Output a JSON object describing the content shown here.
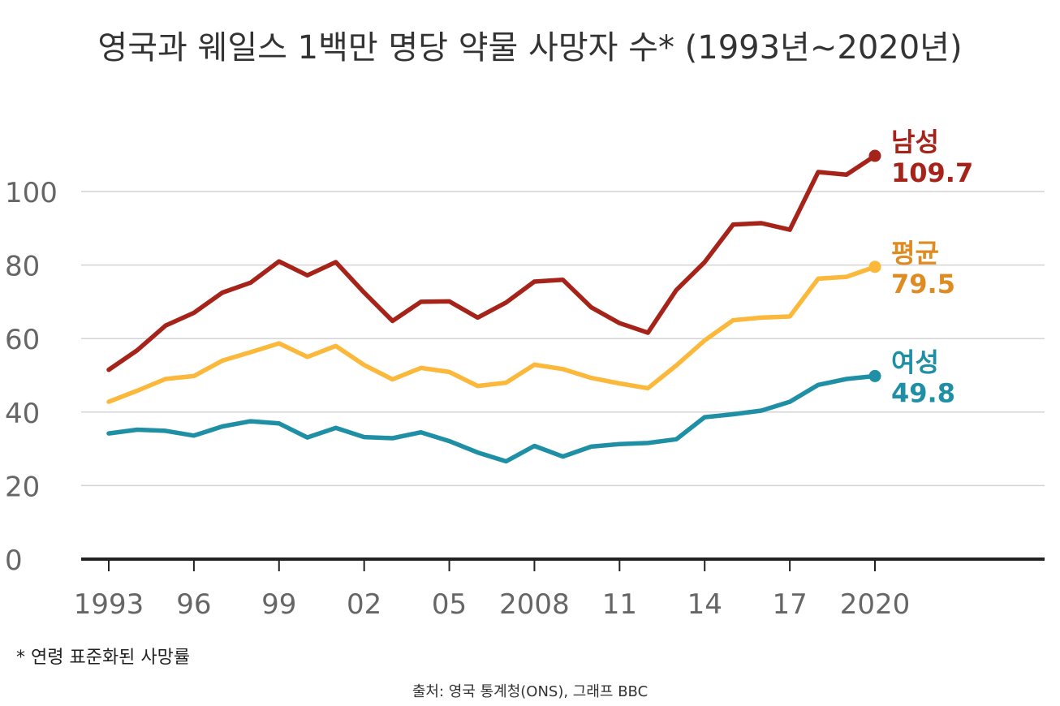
{
  "title": "영국과 웨일스 1백만 명당 약물 사망자 수* (1993년~2020년)",
  "footnote": "* 연령 표준화된 사망률",
  "source": "출처: 영국 통계청(ONS), 그래프 BBC",
  "chart_data": {
    "type": "line",
    "title": "영국과 웨일스 1백만 명당 약물 사망자 수* (1993년~2020년)",
    "xlabel": "",
    "ylabel": "",
    "x": [
      1993,
      1994,
      1995,
      1996,
      1997,
      1998,
      1999,
      2000,
      2001,
      2002,
      2003,
      2004,
      2005,
      2006,
      2007,
      2008,
      2009,
      2010,
      2011,
      2012,
      2013,
      2014,
      2015,
      2016,
      2017,
      2018,
      2019,
      2020
    ],
    "x_ticks": [
      {
        "value": 1993,
        "label": "1993"
      },
      {
        "value": 1996,
        "label": "96"
      },
      {
        "value": 1999,
        "label": "99"
      },
      {
        "value": 2002,
        "label": "02"
      },
      {
        "value": 2005,
        "label": "05"
      },
      {
        "value": 2008,
        "label": "2008"
      },
      {
        "value": 2011,
        "label": "11"
      },
      {
        "value": 2014,
        "label": "14"
      },
      {
        "value": 2017,
        "label": "17"
      },
      {
        "value": 2020,
        "label": "2020"
      }
    ],
    "y_ticks": [
      0,
      20,
      40,
      60,
      80,
      100
    ],
    "ylim": [
      0,
      120
    ],
    "grid": true,
    "series": [
      {
        "name": "남성",
        "end_label": "109.7",
        "color": "#a6231a",
        "label_color": "#a6231a",
        "values": [
          51.5,
          56.8,
          63.5,
          67.0,
          72.5,
          75.2,
          81.0,
          77.2,
          80.8,
          72.5,
          64.8,
          70.0,
          70.1,
          65.7,
          69.8,
          75.5,
          76.0,
          68.5,
          64.2,
          61.6,
          73.2,
          80.8,
          91.0,
          91.4,
          89.6,
          105.3,
          104.6,
          109.7
        ]
      },
      {
        "name": "평균",
        "end_label": "79.5",
        "color": "#fbb83b",
        "label_color": "#de8b22",
        "values": [
          42.8,
          45.8,
          49.0,
          49.8,
          54.0,
          56.3,
          58.7,
          55.0,
          58.0,
          52.8,
          48.9,
          52.0,
          50.9,
          47.1,
          48.0,
          52.9,
          51.7,
          49.3,
          47.8,
          46.5,
          52.7,
          59.5,
          65.0,
          65.7,
          66.0,
          76.3,
          76.8,
          79.5
        ]
      },
      {
        "name": "여성",
        "end_label": "49.8",
        "color": "#1f8fa6",
        "label_color": "#1f8fa6",
        "values": [
          34.2,
          35.2,
          34.9,
          33.6,
          36.1,
          37.5,
          36.9,
          33.1,
          35.7,
          33.2,
          32.9,
          34.5,
          32.1,
          29.0,
          26.6,
          30.8,
          27.9,
          30.6,
          31.3,
          31.6,
          32.6,
          38.6,
          39.4,
          40.4,
          42.8,
          47.4,
          49.0,
          49.8
        ]
      }
    ]
  }
}
